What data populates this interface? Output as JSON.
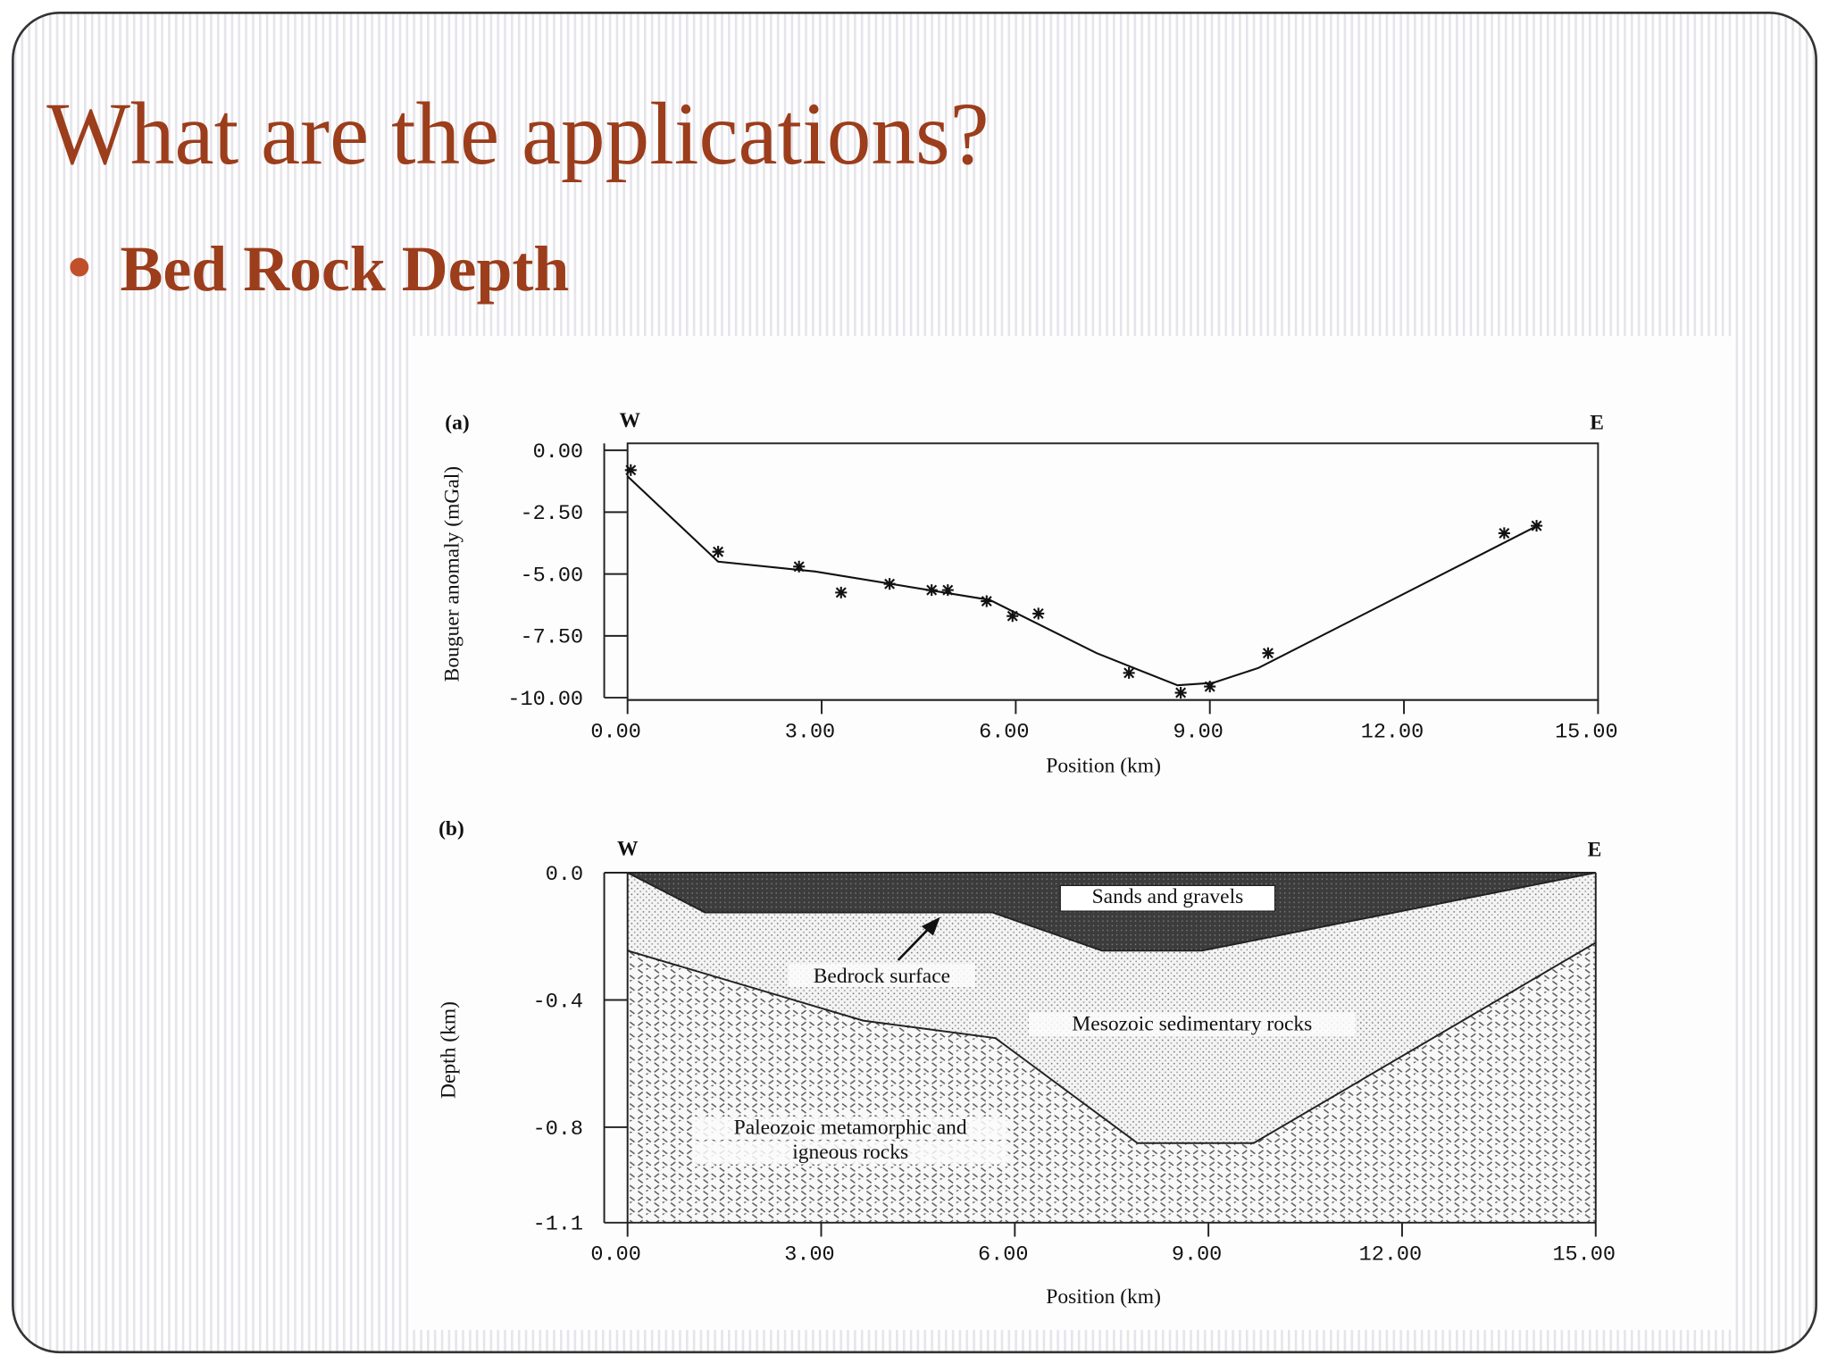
{
  "title": "What are the applications?",
  "bullet": "Bed Rock Depth",
  "chart_data": [
    {
      "type": "line",
      "label": "(a)",
      "left_label": "W",
      "right_label": "E",
      "ylabel": "Bouguer anomaly (mGal)",
      "xlabel": "Position (km)",
      "xlim": [
        0,
        15
      ],
      "xticks": [
        {
          "value": 0,
          "label": "0.00"
        },
        {
          "value": 3,
          "label": "3.00"
        },
        {
          "value": 6,
          "label": "6.00"
        },
        {
          "value": 9,
          "label": "9.00"
        },
        {
          "value": 12,
          "label": "12.00"
        },
        {
          "value": 15,
          "label": "15.00"
        }
      ],
      "ylim": [
        -10,
        0
      ],
      "yticks": [
        {
          "value": 0,
          "label": "0.00"
        },
        {
          "value": -2.5,
          "label": "-2.50"
        },
        {
          "value": -5,
          "label": "-5.00"
        },
        {
          "value": -7.5,
          "label": "-7.50"
        },
        {
          "value": -10,
          "label": "-10.00"
        }
      ],
      "series": [
        {
          "marker": "asterisk",
          "color": "#111111",
          "x": [
            0.05,
            1.4,
            2.65,
            3.3,
            4.05,
            4.7,
            4.95,
            5.55,
            5.95,
            6.35,
            7.75,
            8.55,
            9.0,
            9.9,
            13.55,
            14.05
          ],
          "values": [
            -0.8,
            -4.1,
            -4.7,
            -5.75,
            -5.4,
            -5.65,
            -5.65,
            -6.1,
            -6.7,
            -6.6,
            -9.0,
            -9.8,
            -9.55,
            -8.2,
            -3.35,
            -3.05
          ]
        },
        {
          "marker": "none",
          "color": "#111111",
          "x": [
            0,
            1.4,
            2.9,
            5.6,
            7.25,
            8.5,
            9.05,
            9.75,
            14.1
          ],
          "values": [
            -1.05,
            -4.5,
            -4.9,
            -6.05,
            -8.2,
            -9.5,
            -9.4,
            -8.8,
            -3.0
          ]
        }
      ]
    },
    {
      "type": "area",
      "label": "(b)",
      "left_label": "W",
      "right_label": "E",
      "ylabel": "Depth (km)",
      "xlabel": "Position (km)",
      "xlim": [
        0,
        15
      ],
      "xticks": [
        {
          "value": 0,
          "label": "0.00"
        },
        {
          "value": 3,
          "label": "3.00"
        },
        {
          "value": 6,
          "label": "6.00"
        },
        {
          "value": 9,
          "label": "9.00"
        },
        {
          "value": 12,
          "label": "12.00"
        },
        {
          "value": 15,
          "label": "15.00"
        }
      ],
      "ylim": [
        -1.1,
        0
      ],
      "yticks": [
        {
          "value": 0,
          "label": "0.0"
        },
        -0.4,
        -0.8,
        -1.1
      ],
      "series": [
        {
          "name": "Bedrock surface",
          "color": "#222222",
          "x": [
            0,
            1.2,
            5.65,
            7.35,
            8.9,
            15
          ],
          "values": [
            0,
            -0.125,
            -0.125,
            -0.245,
            -0.245,
            0
          ]
        },
        {
          "color": "#222222",
          "x": [
            0,
            3.65,
            5.7,
            7.9,
            9.7,
            15
          ],
          "values": [
            -0.245,
            -0.465,
            -0.52,
            -0.85,
            -0.85,
            -0.22
          ]
        }
      ],
      "layers": [
        {
          "label": [
            "Sands and gravels"
          ],
          "pattern": "dark"
        },
        {
          "label": [
            "Mesozoic sedimentary rocks"
          ],
          "pattern": "dots"
        },
        {
          "label": [
            "Paleozoic metamorphic and",
            "igneous rocks"
          ],
          "pattern": "hatch"
        }
      ]
    }
  ]
}
